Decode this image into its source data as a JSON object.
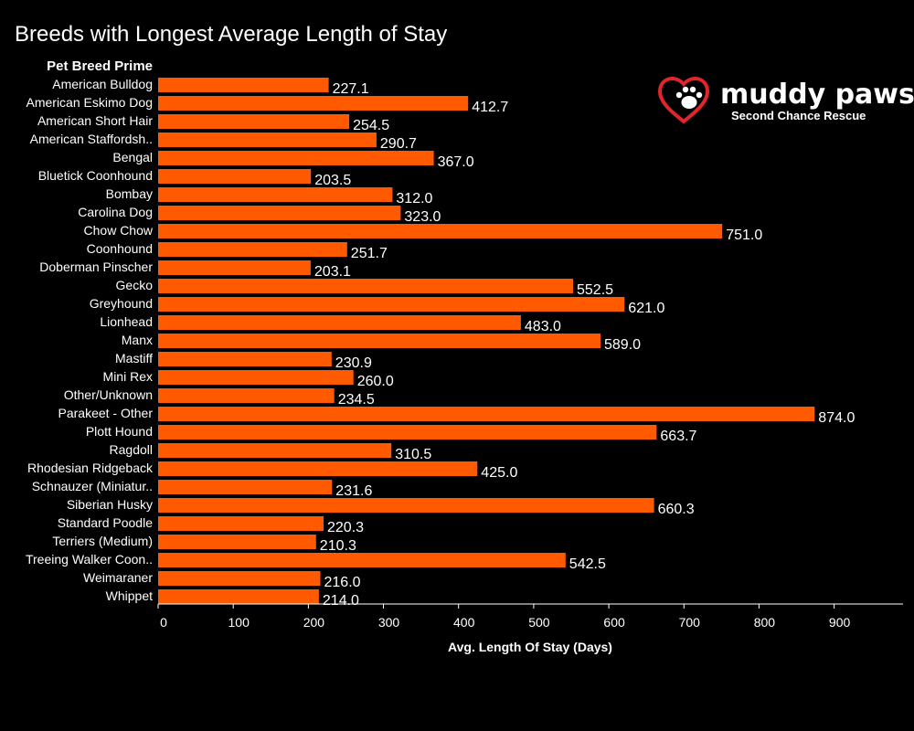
{
  "colors": {
    "background": "#000000",
    "bar": "#ff5a00",
    "text": "#ffffff",
    "axis": "#ffffff",
    "logo_heart": "#e0262a"
  },
  "logo": {
    "name": "muddy paws",
    "tagline": "Second Chance Rescue",
    "icon": "heart-paw-icon"
  },
  "chart_data": {
    "type": "bar",
    "orientation": "horizontal",
    "title": "Breeds with Longest Average Length of Stay",
    "category_header": "Pet Breed Prime",
    "xlabel": "Avg. Length Of Stay (Days)",
    "xlim": [
      0,
      900
    ],
    "xticks": [
      "0",
      "100",
      "200",
      "300",
      "400",
      "500",
      "600",
      "700",
      "800",
      "900"
    ],
    "grid": false,
    "categories": [
      "American Bulldog",
      "American Eskimo Dog",
      "American Short Hair",
      "American Staffordsh..",
      "Bengal",
      "Bluetick Coonhound",
      "Bombay",
      "Carolina Dog",
      "Chow Chow",
      "Coonhound",
      "Doberman Pinscher",
      "Gecko",
      "Greyhound",
      "Lionhead",
      "Manx",
      "Mastiff",
      "Mini Rex",
      "Other/Unknown",
      "Parakeet - Other",
      "Plott Hound",
      "Ragdoll",
      "Rhodesian Ridgeback",
      "Schnauzer (Miniatur..",
      "Siberian Husky",
      "Standard Poodle",
      "Terriers (Medium)",
      "Treeing Walker Coon..",
      "Weimaraner",
      "Whippet"
    ],
    "values": [
      227.1,
      412.7,
      254.5,
      290.7,
      367.0,
      203.5,
      312.0,
      323.0,
      751.0,
      251.7,
      203.1,
      552.5,
      621.0,
      483.0,
      589.0,
      230.9,
      260.0,
      234.5,
      874.0,
      663.7,
      310.5,
      425.0,
      231.6,
      660.3,
      220.3,
      210.3,
      542.5,
      216.0,
      214.0
    ],
    "value_labels": [
      "227.1",
      "412.7",
      "254.5",
      "290.7",
      "367.0",
      "203.5",
      "312.0",
      "323.0",
      "751.0",
      "251.7",
      "203.1",
      "552.5",
      "621.0",
      "483.0",
      "589.0",
      "230.9",
      "260.0",
      "234.5",
      "874.0",
      "663.7",
      "310.5",
      "425.0",
      "231.6",
      "660.3",
      "220.3",
      "210.3",
      "542.5",
      "216.0",
      "214.0"
    ]
  }
}
